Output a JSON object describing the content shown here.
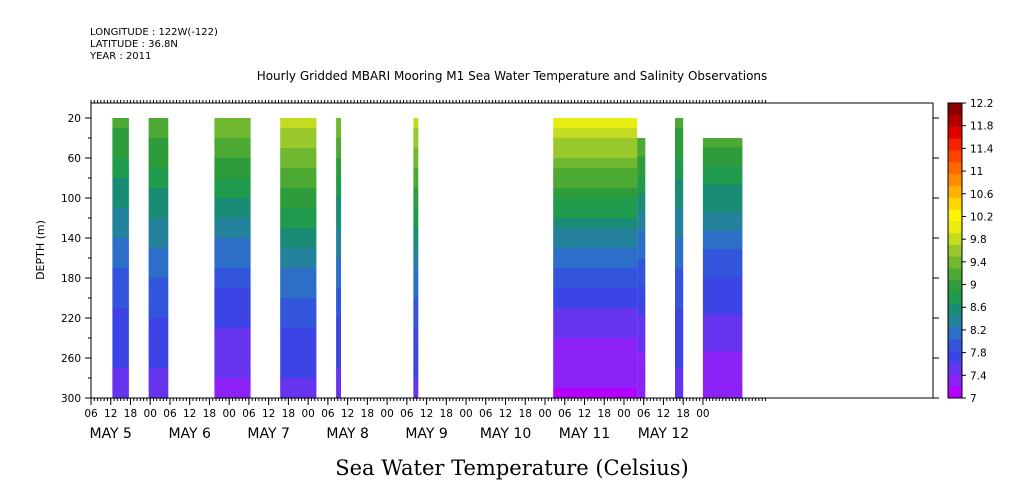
{
  "header": {
    "longitude": "LONGITUDE : 122W(-122)",
    "latitude": "LATITUDE : 36.8N",
    "year": "YEAR : 2011"
  },
  "chart_data": {
    "type": "heatmap",
    "title": "Hourly Gridded MBARI Mooring M1 Sea Water Temperature and Salinity Observations",
    "xlabel": "Sea Water Temperature (Celsius)",
    "ylabel": "DEPTH (m)",
    "x_start_label": "MAY 5 00:00",
    "xlim_hours": [
      6,
      186
    ],
    "ylim": [
      300,
      0
    ],
    "y_reversed": true,
    "y_ticks": [
      20,
      60,
      100,
      140,
      180,
      220,
      260,
      300
    ],
    "x_hour_ticks": [
      "06",
      "12",
      "18",
      "00",
      "06",
      "12",
      "18",
      "00",
      "06",
      "12",
      "18",
      "00",
      "06",
      "12",
      "18",
      "00",
      "06",
      "12",
      "18",
      "00",
      "06",
      "12",
      "18",
      "00",
      "06",
      "12",
      "18",
      "00",
      "06",
      "12",
      "18",
      "00"
    ],
    "day_labels": [
      "MAY  5",
      "MAY  6",
      "MAY  7",
      "MAY  8",
      "MAY  9",
      "MAY 10",
      "MAY 11",
      "MAY 12"
    ],
    "colorbar": {
      "levels": [
        "7",
        "7.4",
        "7.8",
        "8.2",
        "8.6",
        "9",
        "9.4",
        "9.8",
        "10.2",
        "10.6",
        "11",
        "11.4",
        "11.8",
        "12.2"
      ],
      "colors": [
        "#b400ff",
        "#8c22f6",
        "#6633ee",
        "#3c44e6",
        "#3355dc",
        "#2c6ec8",
        "#24829c",
        "#1a8c76",
        "#209a4c",
        "#2e9c3a",
        "#4caa34",
        "#70b830",
        "#98c82c",
        "#c4dc20",
        "#e8ec10",
        "#fff200",
        "#ffd400",
        "#ffb000",
        "#ff8c00",
        "#ff6a00",
        "#ff4400",
        "#f42200",
        "#e00000",
        "#b40000",
        "#8c0000"
      ]
    },
    "segments": [
      {
        "start_hour": 12.5,
        "end_hour": 17.5,
        "top_depth": 20,
        "surface_temp": 9.3,
        "bottom_temp": 7.6
      },
      {
        "start_hour": 23.5,
        "end_hour": 29.5,
        "top_depth": 20,
        "surface_temp": 9.4,
        "bottom_temp": 7.6
      },
      {
        "start_hour": 43.5,
        "end_hour": 54.5,
        "top_depth": 20,
        "surface_temp": 9.6,
        "bottom_temp": 7.4
      },
      {
        "start_hour": 63.5,
        "end_hour": 74.5,
        "top_depth": 20,
        "surface_temp": 10.0,
        "bottom_temp": 7.6
      },
      {
        "start_hour": 80.5,
        "end_hour": 82.0,
        "top_depth": 20,
        "surface_temp": 9.6,
        "bottom_temp": 7.6
      },
      {
        "start_hour": 104.0,
        "end_hour": 105.5,
        "top_depth": 20,
        "surface_temp": 10.0,
        "bottom_temp": 7.6
      },
      {
        "start_hour": 146.5,
        "end_hour": 172.0,
        "top_depth": 20,
        "surface_temp": 10.2,
        "bottom_temp": 7.2
      },
      {
        "start_hour": 172.0,
        "end_hour": 174.5,
        "top_depth": 40,
        "surface_temp": 9.4,
        "bottom_temp": 7.3
      },
      {
        "start_hour": 183.5,
        "end_hour": 186.0,
        "top_depth": 20,
        "surface_temp": 9.3,
        "bottom_temp": 7.6
      },
      {
        "start_hour": 192.0,
        "end_hour": 204.0,
        "top_depth": 40,
        "surface_temp": 9.3,
        "bottom_temp": 7.3
      }
    ]
  }
}
